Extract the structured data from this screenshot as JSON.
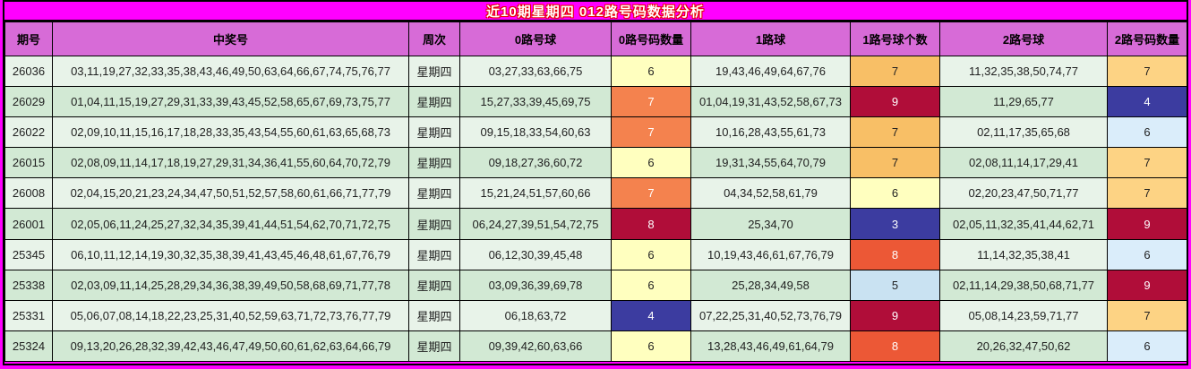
{
  "title": "近10期星期四 012路号码数据分析",
  "columns": [
    {
      "id": "period",
      "label": "期号"
    },
    {
      "id": "numbers",
      "label": "中奖号"
    },
    {
      "id": "week",
      "label": "周次"
    },
    {
      "id": "r0",
      "label": "0路号球"
    },
    {
      "id": "c0",
      "label": "0路号码数量"
    },
    {
      "id": "r1",
      "label": "1路球"
    },
    {
      "id": "c1",
      "label": "1路号球个数"
    },
    {
      "id": "r2",
      "label": "2路号球"
    },
    {
      "id": "c2",
      "label": "2路号码数量"
    }
  ],
  "palette": {
    "page_bg": "#ff00ff",
    "header_bg": "#d76bd7",
    "row_light": "#e8f3e9",
    "row_dark": "#d2e9d4",
    "border": "#000000",
    "title_color": "#ffffff",
    "title_outline": "#e60000",
    "cell_fg": "#1f1f1f",
    "pale_yellow": {
      "bg": "#ffffbf",
      "fg": "#1f1f1f"
    },
    "amber": {
      "bg": "#f8bf66",
      "fg": "#1f1f1f"
    },
    "gold": {
      "bg": "#fdd384",
      "fg": "#1f1f1f"
    },
    "orange": {
      "bg": "#f4824e",
      "fg": "#ffffff"
    },
    "red_orange": {
      "bg": "#ec5836",
      "fg": "#ffffff"
    },
    "dark_red": {
      "bg": "#b00d39",
      "fg": "#ffffff"
    },
    "dark_blue": {
      "bg": "#3c3ca0",
      "fg": "#ffffff"
    },
    "light_blue": {
      "bg": "#daedfa",
      "fg": "#1f1f1f"
    },
    "pale_blue": {
      "bg": "#c9e2f2",
      "fg": "#1f1f1f"
    }
  },
  "rows": [
    {
      "period": "26036",
      "numbers": "03,11,19,27,32,33,35,38,43,46,49,50,63,64,66,67,74,75,76,77",
      "week": "星期四",
      "r0": "03,27,33,63,66,75",
      "c0": "6",
      "c0_color": "pale_yellow",
      "r1": "19,43,46,49,64,67,76",
      "c1": "7",
      "c1_color": "amber",
      "r2": "11,32,35,38,50,74,77",
      "c2": "7",
      "c2_color": "gold"
    },
    {
      "period": "26029",
      "numbers": "01,04,11,15,19,27,29,31,33,39,43,45,52,58,65,67,69,73,75,77",
      "week": "星期四",
      "r0": "15,27,33,39,45,69,75",
      "c0": "7",
      "c0_color": "orange",
      "r1": "01,04,19,31,43,52,58,67,73",
      "c1": "9",
      "c1_color": "dark_red",
      "r2": "11,29,65,77",
      "c2": "4",
      "c2_color": "dark_blue"
    },
    {
      "period": "26022",
      "numbers": "02,09,10,11,15,16,17,18,28,33,35,43,54,55,60,61,63,65,68,73",
      "week": "星期四",
      "r0": "09,15,18,33,54,60,63",
      "c0": "7",
      "c0_color": "orange",
      "r1": "10,16,28,43,55,61,73",
      "c1": "7",
      "c1_color": "amber",
      "r2": "02,11,17,35,65,68",
      "c2": "6",
      "c2_color": "light_blue"
    },
    {
      "period": "26015",
      "numbers": "02,08,09,11,14,17,18,19,27,29,31,34,36,41,55,60,64,70,72,79",
      "week": "星期四",
      "r0": "09,18,27,36,60,72",
      "c0": "6",
      "c0_color": "pale_yellow",
      "r1": "19,31,34,55,64,70,79",
      "c1": "7",
      "c1_color": "amber",
      "r2": "02,08,11,14,17,29,41",
      "c2": "7",
      "c2_color": "gold"
    },
    {
      "period": "26008",
      "numbers": "02,04,15,20,21,23,24,34,47,50,51,52,57,58,60,61,66,71,77,79",
      "week": "星期四",
      "r0": "15,21,24,51,57,60,66",
      "c0": "7",
      "c0_color": "orange",
      "r1": "04,34,52,58,61,79",
      "c1": "6",
      "c1_color": "pale_yellow",
      "r2": "02,20,23,47,50,71,77",
      "c2": "7",
      "c2_color": "gold"
    },
    {
      "period": "26001",
      "numbers": "02,05,06,11,24,25,27,32,34,35,39,41,44,51,54,62,70,71,72,75",
      "week": "星期四",
      "r0": "06,24,27,39,51,54,72,75",
      "c0": "8",
      "c0_color": "dark_red",
      "r1": "25,34,70",
      "c1": "3",
      "c1_color": "dark_blue",
      "r2": "02,05,11,32,35,41,44,62,71",
      "c2": "9",
      "c2_color": "dark_red"
    },
    {
      "period": "25345",
      "numbers": "06,10,11,12,14,19,30,32,35,38,39,41,43,45,46,48,61,67,76,79",
      "week": "星期四",
      "r0": "06,12,30,39,45,48",
      "c0": "6",
      "c0_color": "pale_yellow",
      "r1": "10,19,43,46,61,67,76,79",
      "c1": "8",
      "c1_color": "red_orange",
      "r2": "11,14,32,35,38,41",
      "c2": "6",
      "c2_color": "light_blue"
    },
    {
      "period": "25338",
      "numbers": "02,03,09,11,14,25,28,29,34,36,38,39,49,50,58,68,69,71,77,78",
      "week": "星期四",
      "r0": "03,09,36,39,69,78",
      "c0": "6",
      "c0_color": "pale_yellow",
      "r1": "25,28,34,49,58",
      "c1": "5",
      "c1_color": "pale_blue",
      "r2": "02,11,14,29,38,50,68,71,77",
      "c2": "9",
      "c2_color": "dark_red"
    },
    {
      "period": "25331",
      "numbers": "05,06,07,08,14,18,22,23,25,31,40,52,59,63,71,72,73,76,77,79",
      "week": "星期四",
      "r0": "06,18,63,72",
      "c0": "4",
      "c0_color": "dark_blue",
      "r1": "07,22,25,31,40,52,73,76,79",
      "c1": "9",
      "c1_color": "dark_red",
      "r2": "05,08,14,23,59,71,77",
      "c2": "7",
      "c2_color": "gold"
    },
    {
      "period": "25324",
      "numbers": "09,13,20,26,28,32,39,42,43,46,47,49,50,60,61,62,63,64,66,79",
      "week": "星期四",
      "r0": "09,39,42,60,63,66",
      "c0": "6",
      "c0_color": "pale_yellow",
      "r1": "13,28,43,46,49,61,64,79",
      "c1": "8",
      "c1_color": "red_orange",
      "r2": "20,26,32,47,50,62",
      "c2": "6",
      "c2_color": "light_blue"
    }
  ]
}
